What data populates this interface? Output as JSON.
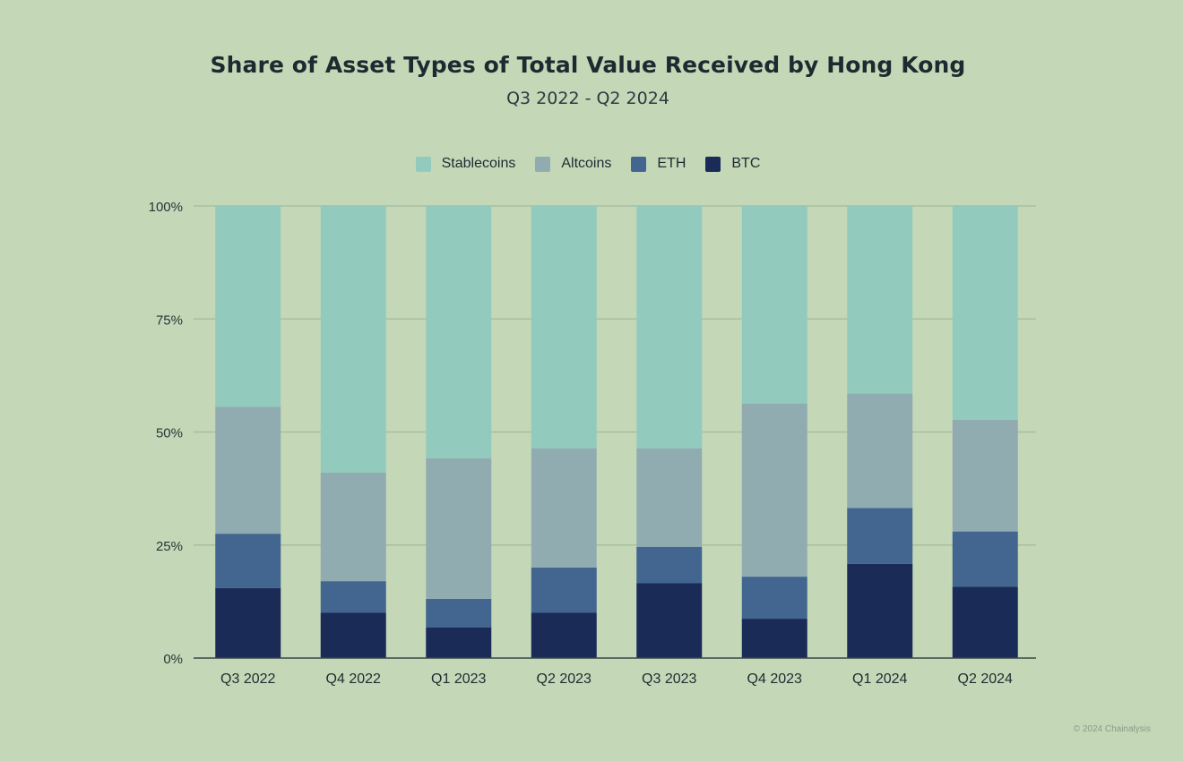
{
  "title": "Share of Asset Types of Total Value Received by Hong Kong",
  "subtitle": "Q3 2022 - Q2 2024",
  "footer": "© 2024 Chainalysis",
  "colors": {
    "background": "#c4d8b8",
    "Stablecoins": "#92cbbd",
    "Altcoins": "#91acb1",
    "ETH": "#426690",
    "BTC": "#1a2b58",
    "grid": "#a9bda0",
    "axis": "#3a4848"
  },
  "legend": [
    {
      "name": "Stablecoins",
      "color": "#92cbbd"
    },
    {
      "name": "Altcoins",
      "color": "#91acb1"
    },
    {
      "name": "ETH",
      "color": "#426690"
    },
    {
      "name": "BTC",
      "color": "#1a2b58"
    }
  ],
  "chart_data": {
    "type": "bar",
    "stacked": true,
    "title": "Share of Asset Types of Total Value Received by Hong Kong",
    "subtitle": "Q3 2022 - Q2 2024",
    "categories": [
      "Q3 2022",
      "Q4 2022",
      "Q1 2023",
      "Q2 2023",
      "Q3 2023",
      "Q4 2023",
      "Q1 2024",
      "Q2 2024"
    ],
    "y_ticks": [
      "0%",
      "25%",
      "50%",
      "75%",
      "100%"
    ],
    "ylim": [
      0,
      100
    ],
    "grid": true,
    "legend_position": "top",
    "series": [
      {
        "name": "BTC",
        "values": [
          15.5,
          10.0,
          6.8,
          10.0,
          16.6,
          8.7,
          20.8,
          15.8
        ]
      },
      {
        "name": "ETH",
        "values": [
          12.0,
          7.0,
          6.3,
          10.0,
          8.0,
          9.3,
          12.4,
          12.2
        ]
      },
      {
        "name": "Altcoins",
        "values": [
          28.1,
          24.0,
          31.1,
          26.4,
          21.8,
          38.3,
          25.3,
          24.7
        ]
      },
      {
        "name": "Stablecoins",
        "values": [
          44.4,
          59.0,
          55.8,
          53.6,
          53.6,
          43.7,
          41.5,
          47.3
        ]
      }
    ]
  }
}
